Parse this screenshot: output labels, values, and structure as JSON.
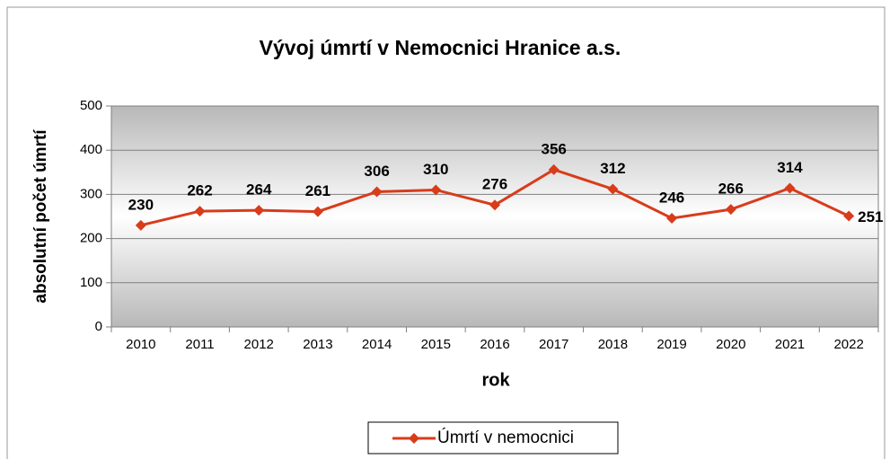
{
  "chart_data": {
    "type": "line",
    "title": "Vývoj úmrtí v Nemocnici Hranice a.s.",
    "x_label": "rok",
    "y_label": "absolutní počet úmrtí",
    "categories": [
      "2010",
      "2011",
      "2012",
      "2013",
      "2014",
      "2015",
      "2016",
      "2017",
      "2018",
      "2019",
      "2020",
      "2021",
      "2022"
    ],
    "series": [
      {
        "name": "Úmrtí v nemocnici",
        "color": "#d83c1b",
        "values": [
          230,
          262,
          264,
          261,
          306,
          310,
          276,
          356,
          312,
          246,
          266,
          314,
          251
        ]
      }
    ],
    "ylim": [
      0,
      500
    ],
    "yticks": [
      0,
      100,
      200,
      300,
      400,
      500
    ],
    "grid": true,
    "legend": "bottom"
  }
}
